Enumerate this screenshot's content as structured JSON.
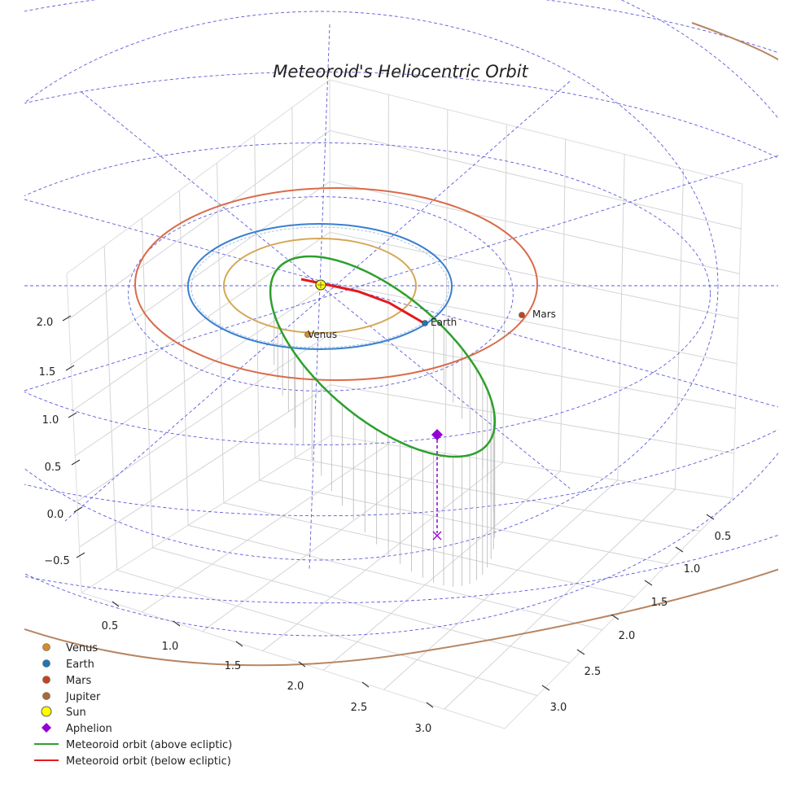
{
  "chart_data": {
    "type": "scatter",
    "title": "Meteoroid's Heliocentric Orbit",
    "xlabel": "",
    "ylabel": "",
    "zlabel": "",
    "x_ticks": [
      "0.5",
      "1.0",
      "1.5",
      "2.0",
      "2.5",
      "3.0"
    ],
    "y_ticks": [
      "0.5",
      "1.0",
      "1.5",
      "2.0",
      "2.5",
      "3.0"
    ],
    "z_ticks": [
      "2.0",
      "1.5",
      "1.0",
      "0.5",
      "0.0",
      "−0.5"
    ],
    "grid": true,
    "legend_position": "bottom-left",
    "planets": [
      {
        "name": "Venus",
        "label": "Venus",
        "orbit_radius_au": 0.72,
        "color": "#d48c2c",
        "orbit_color": "#d4a855"
      },
      {
        "name": "Earth",
        "label": "Earth",
        "orbit_radius_au": 1.0,
        "color": "#1f77b4",
        "orbit_color": "#3a7fd0"
      },
      {
        "name": "Mars",
        "label": "Mars",
        "orbit_radius_au": 1.52,
        "color": "#c8431d",
        "orbit_color": "#d96c4a"
      },
      {
        "name": "Jupiter",
        "label": "",
        "orbit_radius_au": 5.2,
        "color": "#a8683a",
        "orbit_color": "#b88662"
      }
    ],
    "sun": {
      "name": "Sun",
      "color": "#ffff00"
    },
    "aphelion": {
      "name": "Aphelion",
      "color": "#9400d3"
    },
    "meteoroid_orbit": {
      "above_label": "Meteoroid orbit (above ecliptic)",
      "below_label": "Meteoroid orbit (below ecliptic)",
      "above_color": "#2ca02c",
      "below_color": "#e31a1c"
    },
    "ecliptic_grid_color": "#5b5bdc",
    "legend": [
      {
        "label": "Venus",
        "type": "dot",
        "color": "#d48c2c"
      },
      {
        "label": "Earth",
        "type": "dot",
        "color": "#1f77b4"
      },
      {
        "label": "Mars",
        "type": "dot",
        "color": "#c8431d"
      },
      {
        "label": "Jupiter",
        "type": "dot",
        "color": "#a8683a"
      },
      {
        "label": "Sun",
        "type": "sun",
        "color": "#ffff00"
      },
      {
        "label": "Aphelion",
        "type": "diamond",
        "color": "#9400d3"
      },
      {
        "label": "Meteoroid orbit (above ecliptic)",
        "type": "line",
        "color": "#2ca02c"
      },
      {
        "label": "Meteoroid orbit (below ecliptic)",
        "type": "line",
        "color": "#e31a1c"
      }
    ]
  }
}
